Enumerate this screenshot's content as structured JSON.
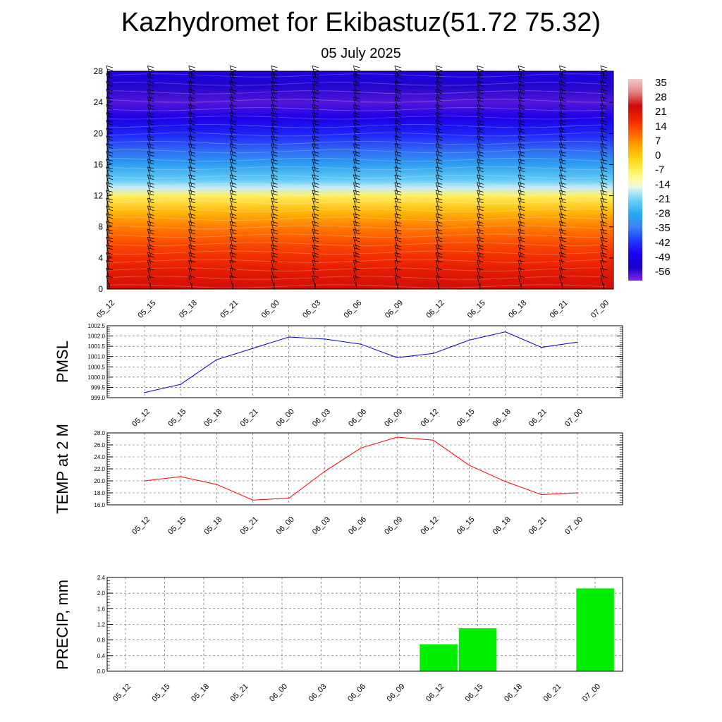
{
  "title": "Kazhydromet for Ekibastuz(51.72 75.32)",
  "subtitle": "05 July 2025",
  "times": [
    "05_12",
    "05_15",
    "05_18",
    "05_21",
    "06_00",
    "06_03",
    "06_06",
    "06_09",
    "06_12",
    "06_15",
    "06_18",
    "06_21",
    "07_00"
  ],
  "colors": {
    "pmsl_line": "#0000cc",
    "temp_line": "#ff0000",
    "precip_bar": "#00ee00"
  },
  "chart_data": [
    {
      "type": "heatmap",
      "name": "temperature_height_section",
      "title": "",
      "xlabel": "",
      "ylabel": "",
      "x": [
        "05_12",
        "05_15",
        "05_18",
        "05_21",
        "06_00",
        "06_03",
        "06_06",
        "06_09",
        "06_12",
        "06_15",
        "06_18",
        "06_21",
        "07_00"
      ],
      "yticks": [
        0,
        4,
        8,
        12,
        16,
        20,
        24,
        28
      ],
      "ylim": [
        0,
        28
      ],
      "colorbar_labels": [
        "35",
        "28",
        "21",
        "14",
        "7",
        "0",
        "-7",
        "-14",
        "-21",
        "-28",
        "-35",
        "-42",
        "-49",
        "-56"
      ],
      "colorbar_range": [
        -63,
        42
      ],
      "temperature_profile": [
        {
          "level": 0,
          "value": 27
        },
        {
          "level": 2,
          "value": 24
        },
        {
          "level": 4,
          "value": 20
        },
        {
          "level": 6,
          "value": 16
        },
        {
          "level": 8,
          "value": 11
        },
        {
          "level": 10,
          "value": 4
        },
        {
          "level": 12,
          "value": -6
        },
        {
          "level": 13,
          "value": -16
        },
        {
          "level": 14,
          "value": -22
        },
        {
          "level": 16,
          "value": -30
        },
        {
          "level": 18,
          "value": -38
        },
        {
          "level": 20,
          "value": -45
        },
        {
          "level": 22,
          "value": -51
        },
        {
          "level": 24,
          "value": -60
        },
        {
          "level": 26,
          "value": -57
        },
        {
          "level": 28,
          "value": -52
        }
      ],
      "wind_barbs": true,
      "grid": false
    },
    {
      "type": "line",
      "name": "pmsl",
      "ylabel": "PMSL",
      "x": [
        "05_12",
        "05_15",
        "05_18",
        "05_21",
        "06_00",
        "06_03",
        "06_06",
        "06_09",
        "06_12",
        "06_15",
        "06_18",
        "06_21",
        "07_00"
      ],
      "values": [
        999.25,
        999.65,
        1000.85,
        1001.4,
        1001.95,
        1001.85,
        1001.6,
        1000.95,
        1001.15,
        1001.8,
        1002.2,
        1001.45,
        1001.7
      ],
      "yticks": [
        "999.0",
        "999.5",
        "1000.0",
        "1000.5",
        "1001.0",
        "1001.5",
        "1002.0",
        "1002.5"
      ],
      "ylim": [
        999.0,
        1002.5
      ],
      "grid": true
    },
    {
      "type": "line",
      "name": "temp_2m",
      "ylabel": "TEMP at 2 M",
      "x": [
        "05_12",
        "05_15",
        "05_18",
        "05_21",
        "06_00",
        "06_03",
        "06_06",
        "06_09",
        "06_12",
        "06_15",
        "06_18",
        "06_21",
        "07_00"
      ],
      "values": [
        20.0,
        20.7,
        19.4,
        16.8,
        17.1,
        21.6,
        25.5,
        27.3,
        26.8,
        22.6,
        19.9,
        17.7,
        18.0
      ],
      "yticks": [
        "16.0",
        "18.0",
        "20.0",
        "22.0",
        "24.0",
        "26.0",
        "28.0"
      ],
      "ylim": [
        16.0,
        28.0
      ],
      "grid": true
    },
    {
      "type": "bar",
      "name": "precip",
      "ylabel": "PRECIP, mm",
      "categories": [
        "05_12",
        "05_15",
        "05_18",
        "05_21",
        "06_00",
        "06_03",
        "06_06",
        "06_09",
        "06_12",
        "06_15",
        "06_18",
        "06_21",
        "07_00"
      ],
      "values": [
        0,
        0,
        0,
        0,
        0,
        0,
        0,
        0,
        0.69,
        1.1,
        0,
        0,
        2.12
      ],
      "yticks": [
        "0.0",
        "0.4",
        "0.8",
        "1.2",
        "1.6",
        "2.0",
        "2.4"
      ],
      "ylim": [
        0,
        2.4
      ],
      "grid": true
    }
  ]
}
